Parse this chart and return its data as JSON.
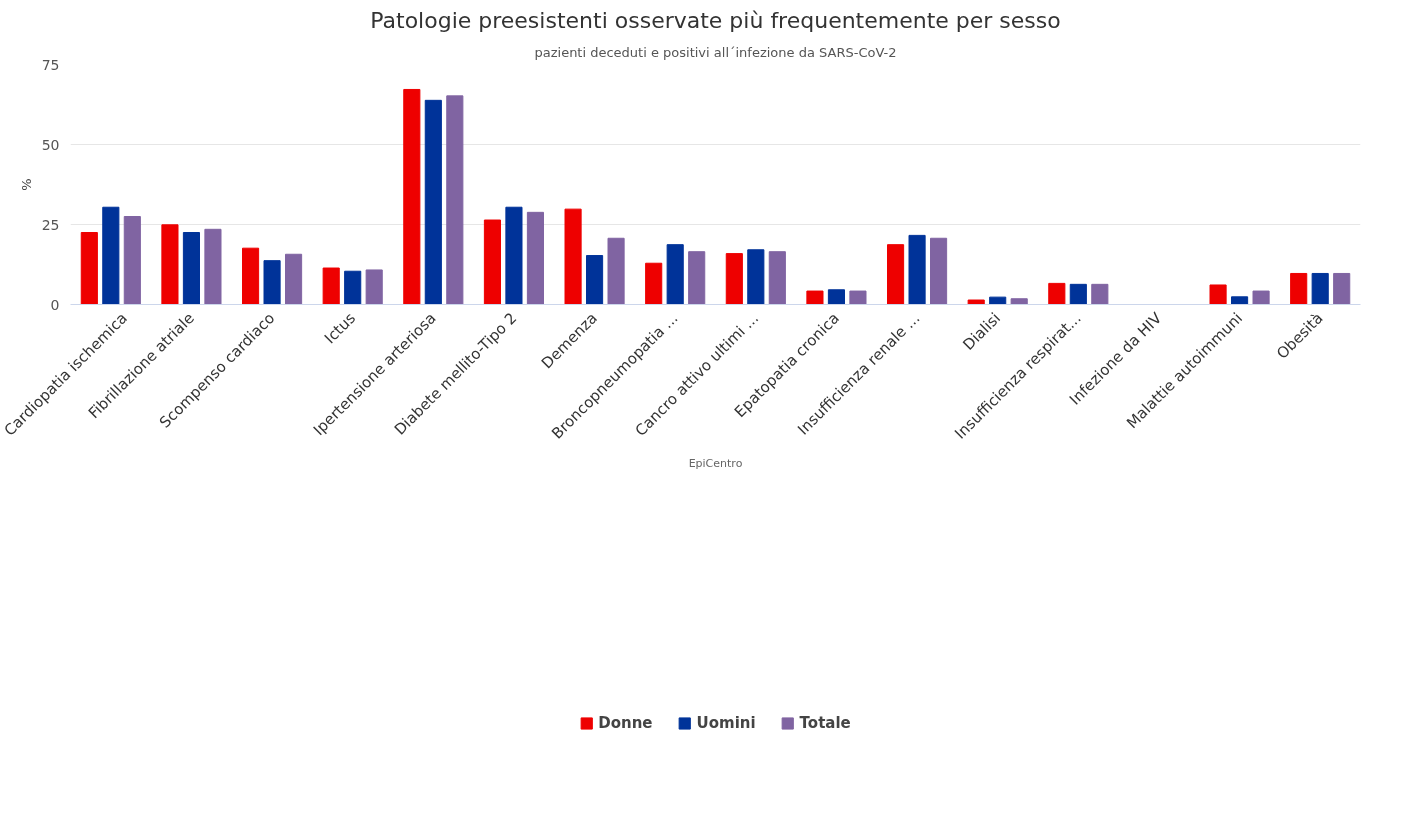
{
  "chart_data": {
    "type": "bar",
    "title": "Patologie preesistenti osservate più frequentemente per sesso",
    "subtitle": "pazienti deceduti e positivi all´infezione da SARS-CoV-2",
    "ylabel": "%",
    "categories": [
      "Cardiopatia ischemica",
      "Fibrillazione atriale",
      "Scompenso cardiaco",
      "Ictus",
      "Ipertensione arteriosa",
      "Diabete mellito-Tipo 2",
      "Demenza",
      "Broncopneumopatia ...",
      "Cancro attivo ultimi ...",
      "Epatopatia cronica",
      "Insufficienza renale ...",
      "Dialisi",
      "Insufficienza respirat...",
      "Infezione da HIV",
      "Malattie autoimmuni",
      "Obesità"
    ],
    "series": [
      {
        "name": "Donne",
        "color": "#ee0000",
        "values": [
          22.5,
          24.9,
          17.6,
          11.4,
          67.2,
          26.4,
          29.8,
          12.9,
          15.9,
          4.2,
          18.7,
          1.4,
          6.6,
          null,
          6.1,
          9.7
        ]
      },
      {
        "name": "Uomini",
        "color": "#003399",
        "values": [
          30.4,
          22.5,
          13.7,
          10.4,
          63.8,
          30.4,
          15.3,
          18.7,
          17.1,
          4.6,
          21.6,
          2.3,
          6.3,
          null,
          2.4,
          9.7
        ]
      },
      {
        "name": "Totale",
        "color": "#8064a2",
        "values": [
          27.5,
          23.5,
          15.7,
          10.8,
          65.2,
          28.8,
          20.7,
          16.5,
          16.5,
          4.2,
          20.7,
          1.8,
          6.3,
          null,
          4.2,
          9.7
        ]
      }
    ],
    "ylim": [
      0,
      75
    ],
    "yticks": [
      0,
      25,
      50,
      75
    ],
    "grid": "y",
    "legend": "bottom",
    "annotations": [
      "EpiCentro"
    ]
  }
}
